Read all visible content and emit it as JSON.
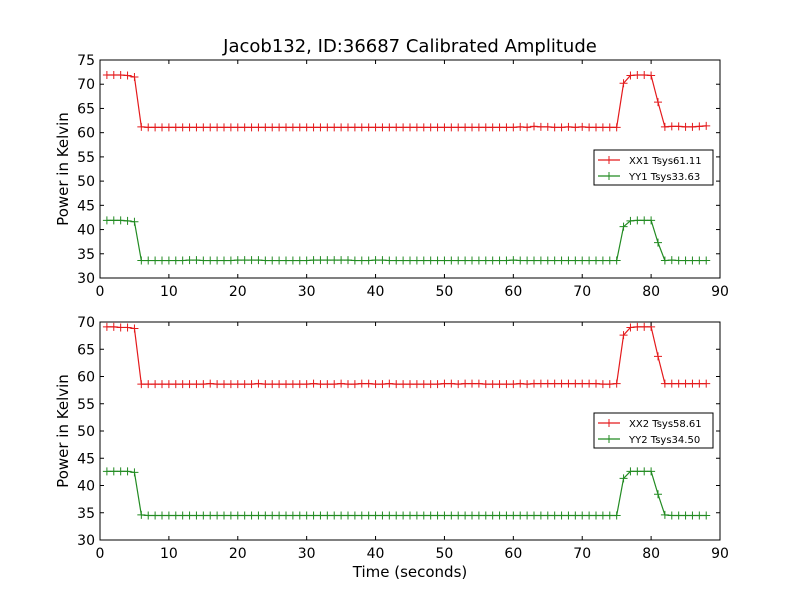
{
  "figure": {
    "title": "Jacob132, ID:36687 Calibrated Amplitude",
    "xlabel": "Time (seconds)"
  },
  "chart_data": [
    {
      "type": "line",
      "ylabel": "Power in Kelvin",
      "xlim": [
        0,
        90
      ],
      "ylim": [
        30,
        75
      ],
      "xticks": [
        0,
        10,
        20,
        30,
        40,
        50,
        60,
        70,
        80,
        90
      ],
      "yticks": [
        30,
        35,
        40,
        45,
        50,
        55,
        60,
        65,
        70,
        75
      ],
      "legend_position": "center-right",
      "series": [
        {
          "name": "XX1 Tsys61.11",
          "color": "#e41a1c",
          "x": [
            1,
            2,
            3,
            4,
            5,
            6,
            7,
            8,
            9,
            10,
            11,
            12,
            13,
            14,
            15,
            16,
            17,
            18,
            19,
            20,
            21,
            22,
            23,
            24,
            25,
            26,
            27,
            28,
            29,
            30,
            31,
            32,
            33,
            34,
            35,
            36,
            37,
            38,
            39,
            40,
            41,
            42,
            43,
            44,
            45,
            46,
            47,
            48,
            49,
            50,
            51,
            52,
            53,
            54,
            55,
            56,
            57,
            58,
            59,
            60,
            61,
            62,
            63,
            64,
            65,
            66,
            67,
            68,
            69,
            70,
            71,
            72,
            73,
            74,
            75,
            76,
            77,
            78,
            79,
            80,
            81,
            82,
            83,
            84,
            85,
            86,
            87,
            88
          ],
          "y": [
            71.9,
            71.9,
            71.9,
            71.8,
            71.5,
            61.2,
            61.1,
            61.1,
            61.1,
            61.1,
            61.1,
            61.1,
            61.1,
            61.1,
            61.1,
            61.1,
            61.1,
            61.1,
            61.1,
            61.1,
            61.1,
            61.1,
            61.1,
            61.1,
            61.1,
            61.1,
            61.1,
            61.1,
            61.1,
            61.1,
            61.1,
            61.1,
            61.1,
            61.1,
            61.1,
            61.1,
            61.1,
            61.1,
            61.1,
            61.1,
            61.1,
            61.1,
            61.1,
            61.1,
            61.1,
            61.1,
            61.1,
            61.1,
            61.1,
            61.1,
            61.1,
            61.1,
            61.1,
            61.1,
            61.1,
            61.1,
            61.1,
            61.1,
            61.1,
            61.1,
            61.2,
            61.1,
            61.3,
            61.2,
            61.2,
            61.1,
            61.1,
            61.2,
            61.1,
            61.2,
            61.1,
            61.1,
            61.1,
            61.1,
            61.1,
            70.2,
            71.8,
            71.9,
            71.9,
            71.8,
            66.3,
            61.2,
            61.3,
            61.3,
            61.2,
            61.2,
            61.3,
            61.4
          ]
        },
        {
          "name": "YY1 Tsys33.63",
          "color": "#228b22",
          "x": [
            1,
            2,
            3,
            4,
            5,
            6,
            7,
            8,
            9,
            10,
            11,
            12,
            13,
            14,
            15,
            16,
            17,
            18,
            19,
            20,
            21,
            22,
            23,
            24,
            25,
            26,
            27,
            28,
            29,
            30,
            31,
            32,
            33,
            34,
            35,
            36,
            37,
            38,
            39,
            40,
            41,
            42,
            43,
            44,
            45,
            46,
            47,
            48,
            49,
            50,
            51,
            52,
            53,
            54,
            55,
            56,
            57,
            58,
            59,
            60,
            61,
            62,
            63,
            64,
            65,
            66,
            67,
            68,
            69,
            70,
            71,
            72,
            73,
            74,
            75,
            76,
            77,
            78,
            79,
            80,
            81,
            82,
            83,
            84,
            85,
            86,
            87,
            88
          ],
          "y": [
            41.9,
            41.9,
            41.9,
            41.8,
            41.6,
            33.6,
            33.6,
            33.6,
            33.6,
            33.6,
            33.6,
            33.6,
            33.7,
            33.7,
            33.6,
            33.6,
            33.6,
            33.6,
            33.6,
            33.7,
            33.7,
            33.7,
            33.7,
            33.6,
            33.6,
            33.6,
            33.6,
            33.6,
            33.6,
            33.6,
            33.7,
            33.7,
            33.7,
            33.7,
            33.7,
            33.7,
            33.6,
            33.6,
            33.6,
            33.7,
            33.7,
            33.6,
            33.6,
            33.6,
            33.6,
            33.6,
            33.6,
            33.6,
            33.6,
            33.6,
            33.6,
            33.6,
            33.6,
            33.6,
            33.6,
            33.6,
            33.6,
            33.6,
            33.6,
            33.7,
            33.6,
            33.6,
            33.6,
            33.6,
            33.6,
            33.6,
            33.6,
            33.6,
            33.6,
            33.6,
            33.6,
            33.6,
            33.6,
            33.6,
            33.6,
            40.6,
            41.8,
            41.9,
            41.9,
            41.9,
            37.3,
            33.6,
            33.7,
            33.6,
            33.6,
            33.6,
            33.6,
            33.6
          ]
        }
      ]
    },
    {
      "type": "line",
      "ylabel": "Power in Kelvin",
      "xlim": [
        0,
        90
      ],
      "ylim": [
        30,
        70
      ],
      "xticks": [
        0,
        10,
        20,
        30,
        40,
        50,
        60,
        70,
        80,
        90
      ],
      "yticks": [
        30,
        35,
        40,
        45,
        50,
        55,
        60,
        65,
        70
      ],
      "legend_position": "center-right",
      "series": [
        {
          "name": "XX2 Tsys58.61",
          "color": "#e41a1c",
          "x": [
            1,
            2,
            3,
            4,
            5,
            6,
            7,
            8,
            9,
            10,
            11,
            12,
            13,
            14,
            15,
            16,
            17,
            18,
            19,
            20,
            21,
            22,
            23,
            24,
            25,
            26,
            27,
            28,
            29,
            30,
            31,
            32,
            33,
            34,
            35,
            36,
            37,
            38,
            39,
            40,
            41,
            42,
            43,
            44,
            45,
            46,
            47,
            48,
            49,
            50,
            51,
            52,
            53,
            54,
            55,
            56,
            57,
            58,
            59,
            60,
            61,
            62,
            63,
            64,
            65,
            66,
            67,
            68,
            69,
            70,
            71,
            72,
            73,
            74,
            75,
            76,
            77,
            78,
            79,
            80,
            81,
            82,
            83,
            84,
            85,
            86,
            87,
            88
          ],
          "y": [
            69.1,
            69.1,
            69.0,
            69.0,
            68.8,
            58.6,
            58.6,
            58.6,
            58.6,
            58.6,
            58.6,
            58.6,
            58.6,
            58.6,
            58.6,
            58.7,
            58.6,
            58.6,
            58.6,
            58.6,
            58.6,
            58.6,
            58.7,
            58.6,
            58.6,
            58.6,
            58.6,
            58.6,
            58.6,
            58.6,
            58.7,
            58.6,
            58.6,
            58.6,
            58.7,
            58.6,
            58.6,
            58.7,
            58.7,
            58.6,
            58.6,
            58.7,
            58.6,
            58.6,
            58.6,
            58.6,
            58.6,
            58.6,
            58.6,
            58.7,
            58.7,
            58.6,
            58.7,
            58.7,
            58.7,
            58.6,
            58.6,
            58.6,
            58.6,
            58.6,
            58.7,
            58.6,
            58.7,
            58.7,
            58.7,
            58.7,
            58.7,
            58.7,
            58.7,
            58.7,
            58.7,
            58.7,
            58.6,
            58.6,
            58.7,
            67.6,
            69.0,
            69.1,
            69.1,
            69.1,
            63.7,
            58.7,
            58.7,
            58.7,
            58.7,
            58.7,
            58.7,
            58.7
          ]
        },
        {
          "name": "YY2 Tsys34.50",
          "color": "#228b22",
          "x": [
            1,
            2,
            3,
            4,
            5,
            6,
            7,
            8,
            9,
            10,
            11,
            12,
            13,
            14,
            15,
            16,
            17,
            18,
            19,
            20,
            21,
            22,
            23,
            24,
            25,
            26,
            27,
            28,
            29,
            30,
            31,
            32,
            33,
            34,
            35,
            36,
            37,
            38,
            39,
            40,
            41,
            42,
            43,
            44,
            45,
            46,
            47,
            48,
            49,
            50,
            51,
            52,
            53,
            54,
            55,
            56,
            57,
            58,
            59,
            60,
            61,
            62,
            63,
            64,
            65,
            66,
            67,
            68,
            69,
            70,
            71,
            72,
            73,
            74,
            75,
            76,
            77,
            78,
            79,
            80,
            81,
            82,
            83,
            84,
            85,
            86,
            87,
            88
          ],
          "y": [
            42.6,
            42.6,
            42.6,
            42.6,
            42.4,
            34.6,
            34.5,
            34.5,
            34.5,
            34.5,
            34.5,
            34.5,
            34.5,
            34.5,
            34.5,
            34.5,
            34.5,
            34.5,
            34.5,
            34.5,
            34.5,
            34.5,
            34.5,
            34.5,
            34.5,
            34.5,
            34.5,
            34.5,
            34.5,
            34.5,
            34.5,
            34.5,
            34.5,
            34.5,
            34.5,
            34.5,
            34.5,
            34.5,
            34.5,
            34.5,
            34.5,
            34.5,
            34.5,
            34.5,
            34.5,
            34.5,
            34.5,
            34.5,
            34.5,
            34.5,
            34.5,
            34.5,
            34.5,
            34.5,
            34.5,
            34.5,
            34.5,
            34.5,
            34.5,
            34.5,
            34.5,
            34.5,
            34.5,
            34.5,
            34.5,
            34.5,
            34.5,
            34.5,
            34.5,
            34.5,
            34.5,
            34.5,
            34.5,
            34.5,
            34.5,
            41.3,
            42.6,
            42.6,
            42.6,
            42.6,
            38.4,
            34.6,
            34.5,
            34.5,
            34.5,
            34.5,
            34.5,
            34.5
          ]
        }
      ]
    }
  ]
}
